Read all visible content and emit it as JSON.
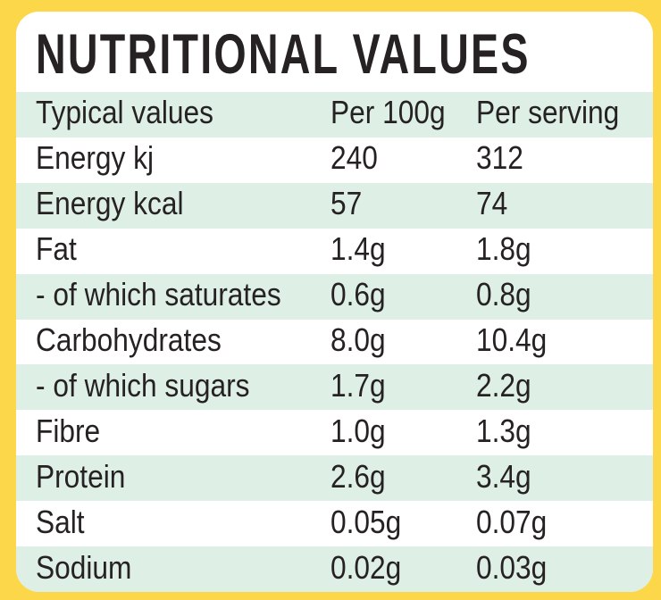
{
  "title": "NUTRITIONAL VALUES",
  "colors": {
    "yellow": "#FDD74A",
    "mint": "#DEF0E6",
    "ink": "#262223",
    "card": "#FFFFFF"
  },
  "table": {
    "columns": [
      "Typical values",
      "Per 100g",
      "Per serving"
    ],
    "rows": [
      {
        "label": "Energy kj",
        "per_100g": "240",
        "per_serving": "312"
      },
      {
        "label": "Energy kcal",
        "per_100g": "57",
        "per_serving": "74"
      },
      {
        "label": "Fat",
        "per_100g": "1.4g",
        "per_serving": "1.8g"
      },
      {
        "label": "- of which saturates",
        "per_100g": "0.6g",
        "per_serving": "0.8g"
      },
      {
        "label": "Carbohydrates",
        "per_100g": "8.0g",
        "per_serving": "10.4g"
      },
      {
        "label": "- of which sugars",
        "per_100g": "1.7g",
        "per_serving": "2.2g"
      },
      {
        "label": "Fibre",
        "per_100g": "1.0g",
        "per_serving": "1.3g"
      },
      {
        "label": "Protein",
        "per_100g": "2.6g",
        "per_serving": "3.4g"
      },
      {
        "label": "Salt",
        "per_100g": "0.05g",
        "per_serving": "0.07g"
      },
      {
        "label": "Sodium",
        "per_100g": "0.02g",
        "per_serving": "0.03g"
      }
    ]
  }
}
